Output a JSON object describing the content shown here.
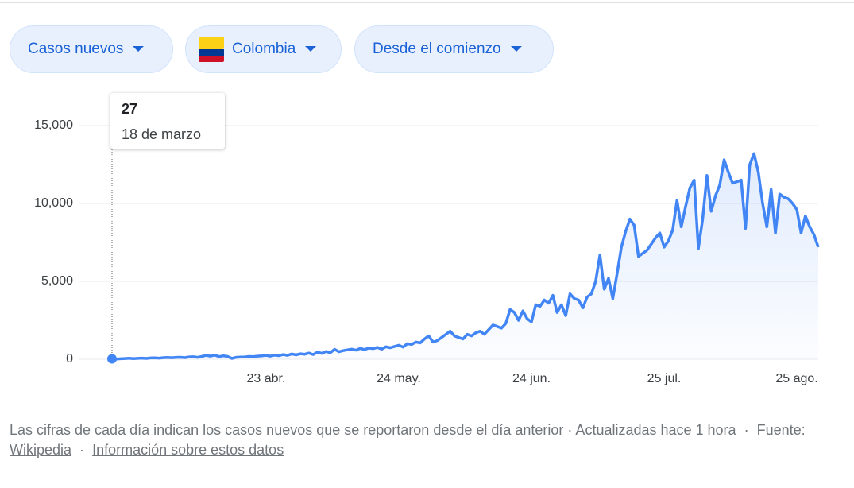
{
  "filters": [
    "Casos nuevos",
    "Colombia",
    "Desde el comienzo"
  ],
  "tooltip": {
    "date": "18 de marzo"
  },
  "chart_data": {
    "type": "line",
    "color": "#4285f4",
    "grid": true,
    "categories": [
      null,
      null,
      null,
      null,
      null,
      null,
      null,
      null,
      null,
      null,
      null,
      null,
      null,
      null,
      null,
      null,
      null,
      null,
      null,
      null,
      null,
      null,
      null,
      null,
      null,
      null,
      null,
      null,
      null,
      null,
      null,
      null,
      null,
      null,
      null,
      null,
      "23 abr.",
      null,
      null,
      null,
      null,
      null,
      null,
      null,
      null,
      null,
      null,
      null,
      null,
      null,
      null,
      null,
      null,
      null,
      null,
      null,
      null,
      null,
      null,
      null,
      null,
      null,
      null,
      null,
      null,
      null,
      null,
      "24 may.",
      null,
      null,
      null,
      null,
      null,
      null,
      null,
      null,
      null,
      null,
      null,
      null,
      null,
      null,
      null,
      null,
      null,
      null,
      null,
      null,
      null,
      null,
      null,
      null,
      null,
      null,
      null,
      null,
      null,
      null,
      "24 jun.",
      null,
      null,
      null,
      null,
      null,
      null,
      null,
      null,
      null,
      null,
      null,
      null,
      null,
      null,
      null,
      null,
      null,
      null,
      null,
      null,
      null,
      null,
      null,
      null,
      null,
      null,
      null,
      null,
      null,
      null,
      "25 jul.",
      null,
      null,
      null,
      null,
      null,
      null,
      null,
      null,
      null,
      null,
      null,
      null,
      null,
      null,
      null,
      null,
      null,
      null,
      null,
      null,
      null,
      null,
      null,
      null,
      null,
      null,
      null,
      null,
      null,
      null,
      "25 ago.",
      null,
      null,
      null,
      null,
      null
    ],
    "values": [
      27,
      15,
      30,
      45,
      60,
      40,
      55,
      70,
      50,
      80,
      90,
      70,
      100,
      110,
      95,
      120,
      130,
      100,
      150,
      160,
      120,
      180,
      250,
      200,
      260,
      170,
      220,
      180,
      50,
      120,
      140,
      150,
      180,
      170,
      200,
      220,
      250,
      200,
      260,
      230,
      300,
      250,
      340,
      280,
      350,
      320,
      400,
      300,
      460,
      380,
      500,
      420,
      640,
      480,
      550,
      600,
      650,
      580,
      700,
      620,
      720,
      680,
      760,
      650,
      800,
      740,
      820,
      900,
      780,
      1000,
      950,
      1100,
      1050,
      1300,
      1500,
      1100,
      1200,
      1400,
      1600,
      1800,
      1500,
      1400,
      1300,
      1600,
      1500,
      1700,
      1800,
      1600,
      1900,
      2200,
      2100,
      2000,
      2300,
      3200,
      3000,
      2500,
      3100,
      2600,
      2400,
      3500,
      3400,
      3800,
      3600,
      4100,
      3000,
      3500,
      2800,
      4200,
      3900,
      3800,
      3300,
      4000,
      4200,
      5000,
      6700,
      4500,
      5200,
      3900,
      5500,
      7200,
      8200,
      9000,
      8600,
      6600,
      6800,
      7000,
      7400,
      7800,
      8100,
      7200,
      7600,
      8300,
      10200,
      8500,
      9800,
      11000,
      11500,
      7100,
      9000,
      11800,
      9500,
      10500,
      11200,
      12800,
      12000,
      11300,
      11400,
      11500,
      8400,
      12500,
      13200,
      12000,
      10000,
      8500,
      10900,
      8100,
      10600,
      10400,
      10300,
      10000,
      9600,
      8100,
      9200,
      8500,
      8000,
      7200
    ],
    "ylim": [
      0,
      15000
    ],
    "yticks": [
      0,
      {
        "value": 5000,
        "label": "5,000"
      },
      {
        "value": 10000,
        "label": "10,000"
      },
      {
        "value": 15000,
        "label": "15,000"
      }
    ]
  },
  "footer": {
    "note": "Las cifras de cada día indican los casos nuevos que se reportaron desde el día anterior · Actualizadas hace 1 hora",
    "separator": "·",
    "source_label": "Fuente:",
    "source_link": "Wikipedia",
    "info_link": "Información sobre estos datos"
  }
}
